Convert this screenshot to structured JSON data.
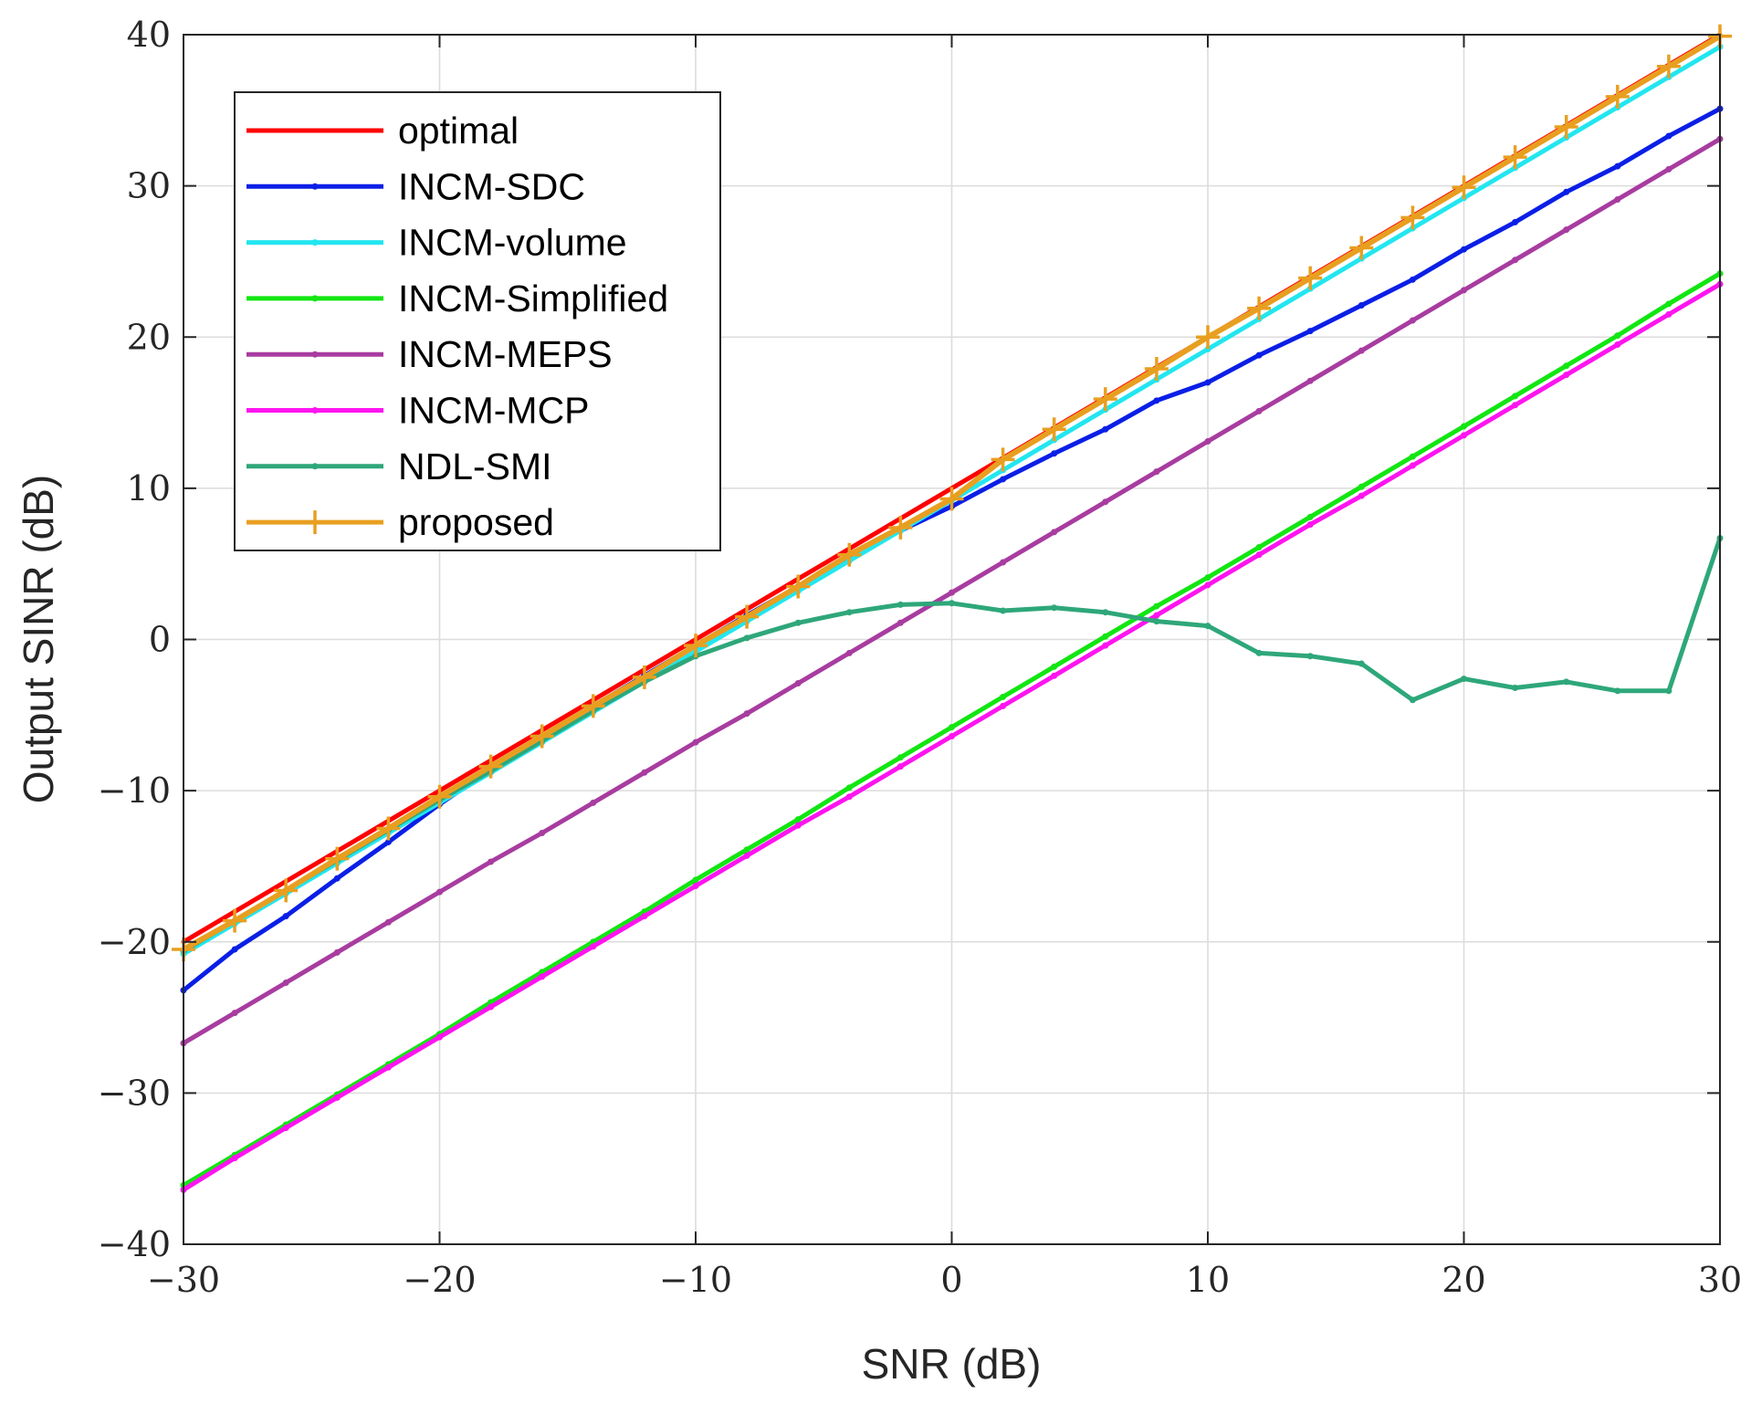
{
  "chart_data": {
    "type": "line",
    "title": "",
    "xlabel": "SNR (dB)",
    "ylabel": "Output SINR (dB)",
    "xlim": [
      -30,
      30
    ],
    "ylim": [
      -40,
      40
    ],
    "xticks": [
      -30,
      -20,
      -10,
      0,
      10,
      20,
      30
    ],
    "yticks": [
      -40,
      -30,
      -20,
      -10,
      0,
      10,
      20,
      30,
      40
    ],
    "xtick_labels": [
      "−30",
      "−20",
      "−10",
      "0",
      "10",
      "20",
      "30"
    ],
    "ytick_labels": [
      "−40",
      "−30",
      "−20",
      "−10",
      "0",
      "10",
      "20",
      "30",
      "40"
    ],
    "grid": true,
    "legend_position": "top-left",
    "x": [
      -30,
      -28,
      -26,
      -24,
      -22,
      -20,
      -18,
      -16,
      -14,
      -12,
      -10,
      -8,
      -6,
      -4,
      -2,
      0,
      2,
      4,
      6,
      8,
      10,
      12,
      14,
      16,
      18,
      20,
      22,
      24,
      26,
      28,
      30
    ],
    "series": [
      {
        "name": "optimal",
        "color": "#ff0000",
        "marker": "none",
        "values": [
          -20,
          -18,
          -16,
          -14,
          -12,
          -10,
          -8,
          -6,
          -4,
          -2,
          0,
          2,
          4,
          6,
          8,
          10,
          12,
          14,
          16,
          18,
          20,
          22,
          24,
          26,
          28,
          30,
          32,
          34,
          36,
          38,
          40
        ]
      },
      {
        "name": "INCM-SDC",
        "color": "#0a1fe6",
        "marker": "dot",
        "values": [
          -23.2,
          -20.5,
          -18.3,
          -15.8,
          -13.4,
          -10.9,
          -8.6,
          -6.5,
          -4.4,
          -2.4,
          -0.4,
          1.6,
          3.5,
          5.4,
          7.2,
          8.8,
          10.6,
          12.3,
          13.9,
          15.8,
          17.0,
          18.8,
          20.4,
          22.1,
          23.8,
          25.8,
          27.6,
          29.6,
          31.3,
          33.3,
          35.1
        ]
      },
      {
        "name": "INCM-volume",
        "color": "#22e6f0",
        "marker": "dot",
        "values": [
          -20.8,
          -18.8,
          -16.8,
          -14.8,
          -12.8,
          -10.8,
          -8.8,
          -6.8,
          -4.8,
          -2.8,
          -0.8,
          1.2,
          3.2,
          5.2,
          7.2,
          9.2,
          11.2,
          13.2,
          15.2,
          17.2,
          19.2,
          21.2,
          23.2,
          25.2,
          27.2,
          29.2,
          31.2,
          33.2,
          35.2,
          37.2,
          39.2
        ]
      },
      {
        "name": "INCM-Simplified",
        "color": "#12e612",
        "marker": "dot",
        "values": [
          -36.1,
          -34.1,
          -32.1,
          -30.1,
          -28.1,
          -26.1,
          -24.0,
          -22.0,
          -20.0,
          -18.0,
          -15.9,
          -13.9,
          -11.9,
          -9.8,
          -7.8,
          -5.8,
          -3.8,
          -1.8,
          0.2,
          2.2,
          4.1,
          6.1,
          8.1,
          10.1,
          12.1,
          14.1,
          16.1,
          18.1,
          20.1,
          22.2,
          24.2
        ]
      },
      {
        "name": "INCM-MEPS",
        "color": "#a83ca0",
        "marker": "dot",
        "values": [
          -26.7,
          -24.7,
          -22.7,
          -20.7,
          -18.7,
          -16.7,
          -14.7,
          -12.8,
          -10.8,
          -8.8,
          -6.8,
          -4.9,
          -2.9,
          -0.9,
          1.1,
          3.1,
          5.1,
          7.1,
          9.1,
          11.1,
          13.1,
          15.1,
          17.1,
          19.1,
          21.1,
          23.1,
          25.1,
          27.1,
          29.1,
          31.1,
          33.1
        ]
      },
      {
        "name": "INCM-MCP",
        "color": "#ff14f0",
        "marker": "dot",
        "values": [
          -36.4,
          -34.3,
          -32.3,
          -30.3,
          -28.3,
          -26.3,
          -24.3,
          -22.3,
          -20.3,
          -18.3,
          -16.3,
          -14.3,
          -12.3,
          -10.4,
          -8.4,
          -6.4,
          -4.4,
          -2.4,
          -0.4,
          1.6,
          3.6,
          5.6,
          7.6,
          9.5,
          11.5,
          13.5,
          15.5,
          17.5,
          19.5,
          21.5,
          23.5
        ]
      },
      {
        "name": "NDL-SMI",
        "color": "#2ea77a",
        "marker": "dot",
        "values": [
          -20.6,
          -18.6,
          -16.6,
          -14.6,
          -12.6,
          -10.6,
          -8.7,
          -6.7,
          -4.7,
          -2.8,
          -1.1,
          0.1,
          1.1,
          1.8,
          2.3,
          2.4,
          1.9,
          2.1,
          1.8,
          1.2,
          0.9,
          -0.9,
          -1.1,
          -1.6,
          -4.0,
          -2.6,
          -3.2,
          -2.8,
          -3.4,
          -3.4,
          6.7
        ]
      },
      {
        "name": "proposed",
        "color": "#e89f20",
        "marker": "plus",
        "values": [
          -20.5,
          -18.6,
          -16.6,
          -14.5,
          -12.5,
          -10.4,
          -8.4,
          -6.4,
          -4.4,
          -2.5,
          -0.4,
          1.5,
          3.5,
          5.6,
          7.4,
          9.3,
          11.9,
          13.9,
          15.9,
          17.9,
          20.0,
          21.9,
          23.9,
          25.9,
          27.9,
          29.9,
          31.9,
          33.9,
          35.9,
          37.9,
          39.9
        ]
      }
    ]
  }
}
